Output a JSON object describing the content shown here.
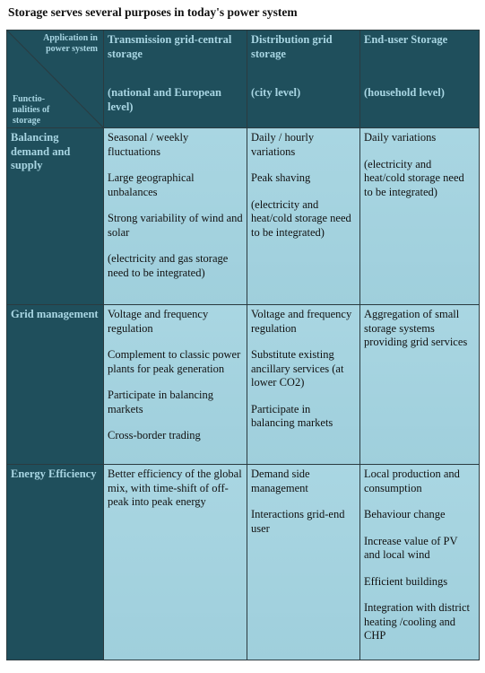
{
  "title": "Storage serves several purposes in today's power system",
  "table": {
    "corner": {
      "application": "Application in power system",
      "functionalities": "Functio-nalities of storage"
    },
    "columns": [
      {
        "name": "Transmission grid-central storage",
        "level": "(national and European level)"
      },
      {
        "name": "Distribution grid storage",
        "level": "(city level)"
      },
      {
        "name": "End-user Storage",
        "level": "(household level)"
      }
    ],
    "rows": [
      {
        "label": "Balancing demand and supply",
        "cells": [
          [
            "Seasonal / weekly fluctuations",
            "Large geographical unbalances",
            "Strong variability of wind and solar",
            "(electricity and gas storage need to be integrated)"
          ],
          [
            "Daily / hourly variations",
            "Peak shaving",
            "(electricity and heat/cold storage need to be integrated)"
          ],
          [
            "Daily variations",
            "(electricity and heat/cold storage need to be integrated)"
          ]
        ]
      },
      {
        "label": "Grid management",
        "cells": [
          [
            "Voltage and frequency regulation",
            "Complement to classic power plants for peak generation",
            "Participate in balancing markets",
            "Cross-border trading"
          ],
          [
            "Voltage and frequency regulation",
            "Substitute existing ancillary services (at lower CO2)",
            "Participate in balancing markets"
          ],
          [
            "Aggregation of small storage systems providing grid services"
          ]
        ]
      },
      {
        "label": "Energy Efficiency",
        "cells": [
          [
            "Better efficiency of the global mix, with time-shift of off-peak into peak energy"
          ],
          [
            "Demand side management",
            "Interactions grid-end user"
          ],
          [
            "Local production and consumption",
            "Behaviour change",
            "Increase value of PV and local wind",
            "Efficient buildings",
            "Integration with district  heating /cooling and CHP"
          ]
        ]
      }
    ]
  }
}
